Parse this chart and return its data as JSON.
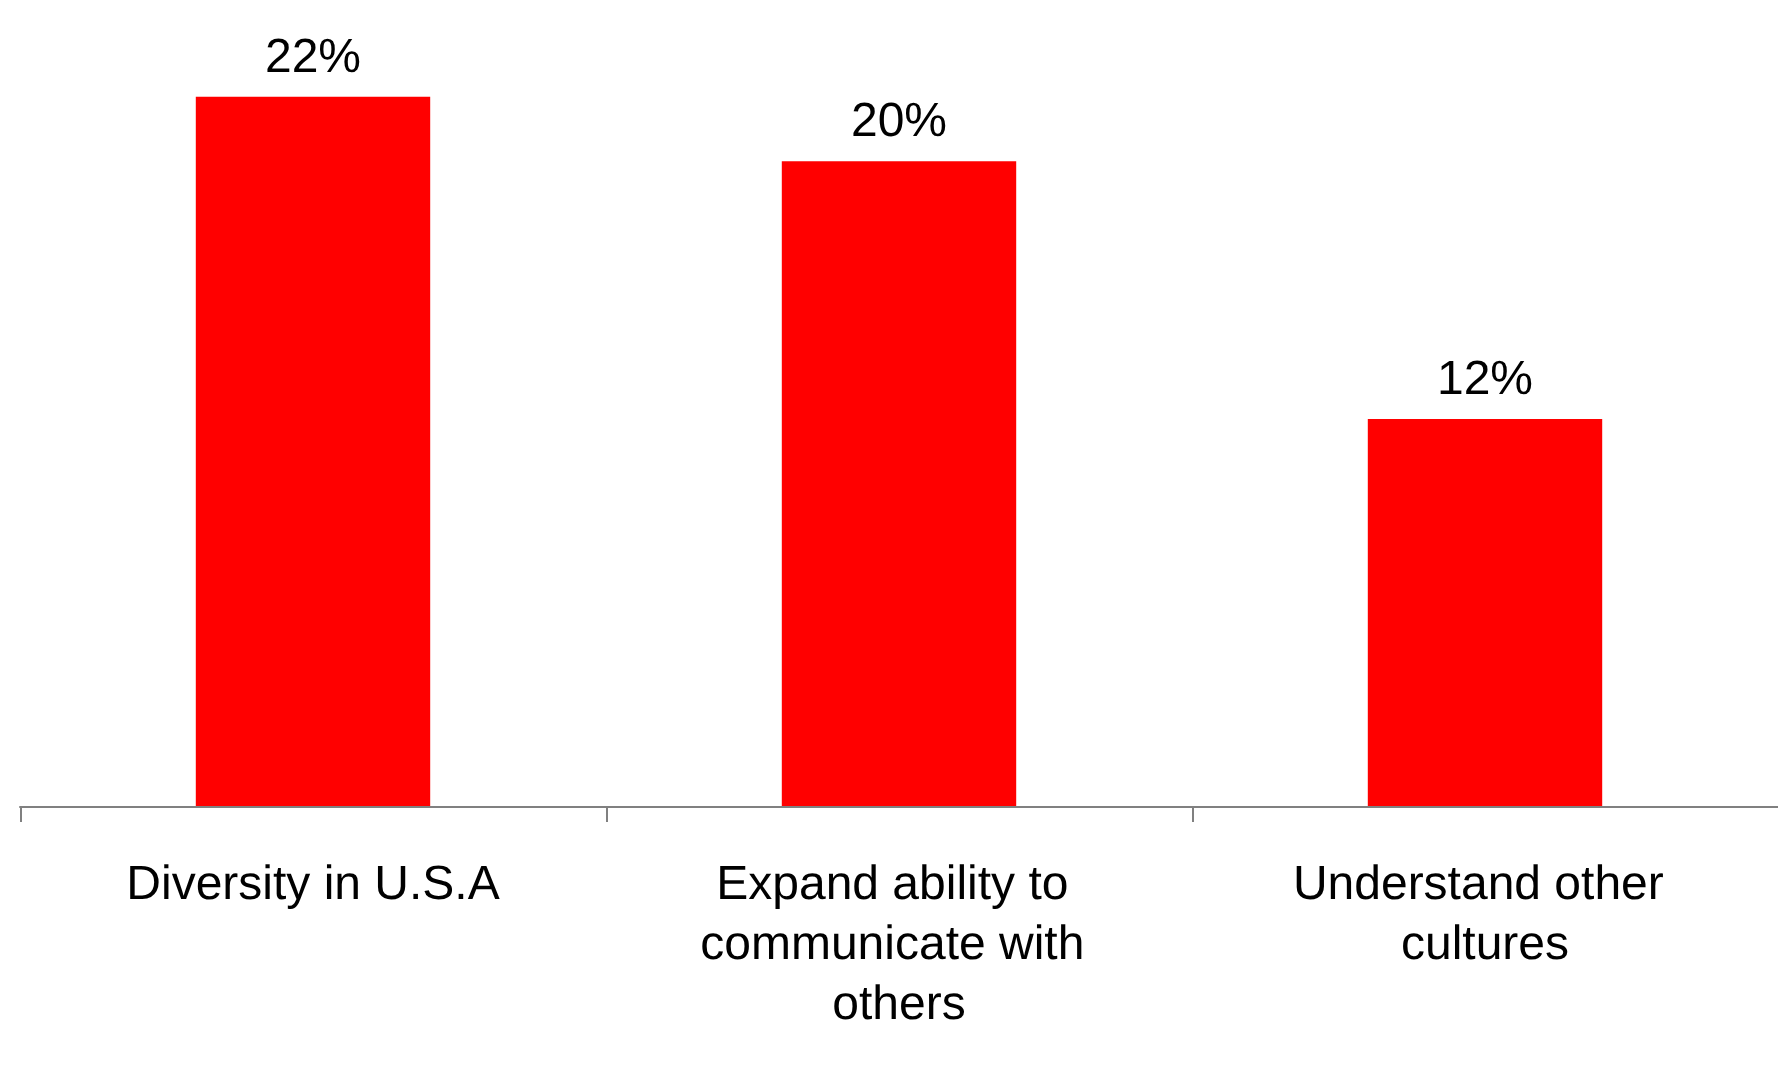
{
  "chart_data": {
    "type": "bar",
    "categories": [
      "Diversity in U.S.A",
      "Expand ability to communicate with others",
      "Understand other cultures"
    ],
    "values": [
      22,
      20,
      12
    ],
    "color": "#ff0000",
    "value_labels": [
      "22%",
      "20%",
      "12%"
    ]
  }
}
